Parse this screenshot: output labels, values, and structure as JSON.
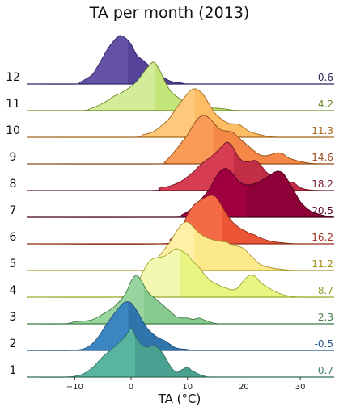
{
  "chart_data": {
    "type": "ridgeline",
    "title": "TA per month (2013)",
    "xlabel": "TA (°C)",
    "ylabel": "",
    "xlim": [
      -18.5,
      36
    ],
    "x_ticks": [
      -10,
      0,
      10,
      20,
      30
    ],
    "x_tick_labels": [
      "−10",
      "0",
      "10",
      "20",
      "30"
    ],
    "mean_label_position": "right",
    "series": [
      {
        "label": "1",
        "mean": 0.7,
        "mean_label": "0.7",
        "color": "#5ab4a2",
        "dark": "#4aa192",
        "line": "#2f6b5f",
        "label_color": "#3c7f70",
        "density": [
          [
            -18,
            0
          ],
          [
            -12,
            0
          ],
          [
            -9,
            0.04
          ],
          [
            -7,
            0.18
          ],
          [
            -5,
            0.42
          ],
          [
            -3,
            0.62
          ],
          [
            -1,
            0.84
          ],
          [
            0,
            1.0
          ],
          [
            1,
            0.8
          ],
          [
            2,
            0.65
          ],
          [
            3,
            0.62
          ],
          [
            4,
            0.65
          ],
          [
            5,
            0.58
          ],
          [
            6,
            0.42
          ],
          [
            7,
            0.22
          ],
          [
            8,
            0.1
          ],
          [
            9,
            0.15
          ],
          [
            10,
            0.2
          ],
          [
            11,
            0.12
          ],
          [
            13,
            0.02
          ],
          [
            16,
            0
          ],
          [
            36,
            0
          ]
        ]
      },
      {
        "label": "2",
        "mean": -0.5,
        "mean_label": "-0.5",
        "color": "#3b86c0",
        "dark": "#2f74ab",
        "line": "#1d4f7d",
        "label_color": "#24558a",
        "density": [
          [
            -18,
            0
          ],
          [
            -11,
            0
          ],
          [
            -8,
            0.05
          ],
          [
            -6,
            0.25
          ],
          [
            -4,
            0.6
          ],
          [
            -2,
            0.9
          ],
          [
            -1,
            1.0
          ],
          [
            0,
            0.98
          ],
          [
            1,
            0.82
          ],
          [
            2,
            0.62
          ],
          [
            3,
            0.44
          ],
          [
            4,
            0.33
          ],
          [
            5,
            0.25
          ],
          [
            6,
            0.2
          ],
          [
            7,
            0.12
          ],
          [
            8,
            0.05
          ],
          [
            10,
            0.02
          ],
          [
            13,
            0
          ],
          [
            36,
            0
          ]
        ]
      },
      {
        "label": "3",
        "mean": 2.3,
        "mean_label": "2.3",
        "color": "#98d59e",
        "dark": "#86ca8f",
        "line": "#3f7a46",
        "label_color": "#3b7b45",
        "density": [
          [
            -18,
            0
          ],
          [
            -12,
            0
          ],
          [
            -10,
            0.04
          ],
          [
            -7,
            0.08
          ],
          [
            -5,
            0.2
          ],
          [
            -3,
            0.35
          ],
          [
            -1,
            0.62
          ],
          [
            0,
            0.88
          ],
          [
            1,
            1.0
          ],
          [
            2,
            0.85
          ],
          [
            3,
            0.65
          ],
          [
            4,
            0.55
          ],
          [
            5,
            0.45
          ],
          [
            6,
            0.35
          ],
          [
            7,
            0.25
          ],
          [
            8,
            0.15
          ],
          [
            9,
            0.12
          ],
          [
            10,
            0.12
          ],
          [
            11,
            0.09
          ],
          [
            12,
            0.12
          ],
          [
            13,
            0.08
          ],
          [
            15,
            0.01
          ],
          [
            18,
            0
          ],
          [
            36,
            0
          ]
        ]
      },
      {
        "label": "4",
        "mean": 8.7,
        "mean_label": "8.7",
        "color": "#f2f8b0",
        "dark": "#e8f582",
        "line": "#9aa62a",
        "label_color": "#8c9a20",
        "density": [
          [
            -18,
            0
          ],
          [
            -3,
            0
          ],
          [
            -1,
            0.05
          ],
          [
            1,
            0.25
          ],
          [
            2,
            0.5
          ],
          [
            3,
            0.7
          ],
          [
            4,
            0.8
          ],
          [
            5,
            0.82
          ],
          [
            6,
            0.85
          ],
          [
            7,
            0.93
          ],
          [
            8,
            1.0
          ],
          [
            9,
            0.95
          ],
          [
            10,
            0.87
          ],
          [
            11,
            0.73
          ],
          [
            12,
            0.62
          ],
          [
            13,
            0.47
          ],
          [
            14,
            0.35
          ],
          [
            15,
            0.28
          ],
          [
            16,
            0.22
          ],
          [
            17,
            0.18
          ],
          [
            18,
            0.15
          ],
          [
            19,
            0.2
          ],
          [
            20,
            0.35
          ],
          [
            21,
            0.45
          ],
          [
            22,
            0.43
          ],
          [
            23,
            0.3
          ],
          [
            25,
            0.15
          ],
          [
            27,
            0.05
          ],
          [
            30,
            0
          ],
          [
            36,
            0
          ]
        ]
      },
      {
        "label": "5",
        "mean": 11.2,
        "mean_label": "11.2",
        "color": "#fff0a5",
        "dark": "#fce98a",
        "line": "#a8972f",
        "label_color": "#a38d16",
        "density": [
          [
            -18,
            0
          ],
          [
            1,
            0
          ],
          [
            3,
            0.05
          ],
          [
            5,
            0.3
          ],
          [
            6,
            0.45
          ],
          [
            7,
            0.6
          ],
          [
            8,
            0.8
          ],
          [
            9,
            0.95
          ],
          [
            10,
            1.0
          ],
          [
            11,
            0.9
          ],
          [
            12,
            0.78
          ],
          [
            13,
            0.7
          ],
          [
            14,
            0.65
          ],
          [
            15,
            0.62
          ],
          [
            16,
            0.6
          ],
          [
            17,
            0.58
          ],
          [
            18,
            0.52
          ],
          [
            19,
            0.5
          ],
          [
            20,
            0.45
          ],
          [
            21,
            0.33
          ],
          [
            22,
            0.22
          ],
          [
            23,
            0.12
          ],
          [
            25,
            0.05
          ],
          [
            28,
            0.01
          ],
          [
            30,
            0
          ],
          [
            36,
            0
          ]
        ]
      },
      {
        "label": "6",
        "mean": 16.2,
        "mean_label": "16.2",
        "color": "#f36a44",
        "dark": "#ec5436",
        "line": "#8c2f17",
        "label_color": "#a0341c",
        "density": [
          [
            -18,
            0
          ],
          [
            5,
            0
          ],
          [
            7,
            0.1
          ],
          [
            9,
            0.35
          ],
          [
            10,
            0.6
          ],
          [
            11,
            0.78
          ],
          [
            12,
            0.88
          ],
          [
            13,
            0.95
          ],
          [
            14,
            1.0
          ],
          [
            15,
            0.97
          ],
          [
            16,
            0.8
          ],
          [
            17,
            0.6
          ],
          [
            18,
            0.45
          ],
          [
            19,
            0.35
          ],
          [
            20,
            0.28
          ],
          [
            21,
            0.22
          ],
          [
            22,
            0.18
          ],
          [
            23,
            0.12
          ],
          [
            25,
            0.05
          ],
          [
            28,
            0.01
          ],
          [
            31,
            0
          ],
          [
            36,
            0
          ]
        ]
      },
      {
        "label": "7",
        "mean": 20.5,
        "mean_label": "20.5",
        "color": "#a0003f",
        "dark": "#8e0038",
        "line": "#4a0020",
        "label_color": "#5d0a2a",
        "density": [
          [
            -18,
            0
          ],
          [
            7,
            0
          ],
          [
            9,
            0.05
          ],
          [
            11,
            0.2
          ],
          [
            13,
            0.45
          ],
          [
            14,
            0.6
          ],
          [
            15,
            0.82
          ],
          [
            16,
            0.97
          ],
          [
            17,
            1.0
          ],
          [
            18,
            0.9
          ],
          [
            19,
            0.75
          ],
          [
            20,
            0.68
          ],
          [
            21,
            0.67
          ],
          [
            22,
            0.7
          ],
          [
            23,
            0.75
          ],
          [
            24,
            0.82
          ],
          [
            25,
            0.9
          ],
          [
            26,
            0.95
          ],
          [
            27,
            0.9
          ],
          [
            28,
            0.72
          ],
          [
            29,
            0.52
          ],
          [
            30,
            0.32
          ],
          [
            31,
            0.2
          ],
          [
            32,
            0.12
          ],
          [
            34,
            0.04
          ],
          [
            36,
            0
          ]
        ]
      },
      {
        "label": "8",
        "mean": 18.2,
        "mean_label": "18.2",
        "color": "#d63c52",
        "dark": "#c22e45",
        "line": "#6a1623",
        "label_color": "#7a1b29",
        "density": [
          [
            -18,
            0
          ],
          [
            3,
            0
          ],
          [
            5,
            0.05
          ],
          [
            7,
            0.1
          ],
          [
            9,
            0.2
          ],
          [
            11,
            0.38
          ],
          [
            12,
            0.5
          ],
          [
            13,
            0.6
          ],
          [
            14,
            0.68
          ],
          [
            15,
            0.78
          ],
          [
            16,
            0.9
          ],
          [
            17,
            1.0
          ],
          [
            18,
            0.9
          ],
          [
            19,
            0.7
          ],
          [
            20,
            0.6
          ],
          [
            21,
            0.6
          ],
          [
            22,
            0.62
          ],
          [
            23,
            0.52
          ],
          [
            24,
            0.38
          ],
          [
            25,
            0.3
          ],
          [
            26,
            0.27
          ],
          [
            27,
            0.2
          ],
          [
            28,
            0.18
          ],
          [
            29,
            0.15
          ],
          [
            30,
            0.06
          ],
          [
            32,
            0.01
          ],
          [
            36,
            0
          ]
        ]
      },
      {
        "label": "9",
        "mean": 14.6,
        "mean_label": "14.6",
        "color": "#fa9a57",
        "dark": "#f58846",
        "line": "#8f4a16",
        "label_color": "#9c4a1a",
        "density": [
          [
            -18,
            0
          ],
          [
            4,
            0
          ],
          [
            6,
            0.05
          ],
          [
            8,
            0.3
          ],
          [
            9,
            0.45
          ],
          [
            10,
            0.6
          ],
          [
            11,
            0.8
          ],
          [
            12,
            0.95
          ],
          [
            13,
            1.0
          ],
          [
            14,
            0.93
          ],
          [
            15,
            0.8
          ],
          [
            16,
            0.7
          ],
          [
            17,
            0.68
          ],
          [
            18,
            0.65
          ],
          [
            19,
            0.55
          ],
          [
            20,
            0.45
          ],
          [
            21,
            0.35
          ],
          [
            22,
            0.25
          ],
          [
            23,
            0.18
          ],
          [
            24,
            0.17
          ],
          [
            25,
            0.2
          ],
          [
            26,
            0.23
          ],
          [
            27,
            0.2
          ],
          [
            28,
            0.12
          ],
          [
            30,
            0.05
          ],
          [
            32,
            0.01
          ],
          [
            36,
            0
          ]
        ]
      },
      {
        "label": "10",
        "mean": 11.3,
        "mean_label": "11.3",
        "color": "#fec97b",
        "dark": "#fcbd65",
        "line": "#a3681d",
        "label_color": "#a5641a",
        "density": [
          [
            -18,
            0
          ],
          [
            0,
            0
          ],
          [
            2,
            0.05
          ],
          [
            4,
            0.12
          ],
          [
            6,
            0.3
          ],
          [
            7,
            0.42
          ],
          [
            8,
            0.6
          ],
          [
            9,
            0.75
          ],
          [
            10,
            0.9
          ],
          [
            11,
            1.0
          ],
          [
            12,
            0.97
          ],
          [
            13,
            0.85
          ],
          [
            14,
            0.65
          ],
          [
            15,
            0.48
          ],
          [
            16,
            0.38
          ],
          [
            17,
            0.3
          ],
          [
            18,
            0.28
          ],
          [
            19,
            0.27
          ],
          [
            20,
            0.2
          ],
          [
            21,
            0.12
          ],
          [
            23,
            0.05
          ],
          [
            26,
            0
          ],
          [
            36,
            0
          ]
        ]
      },
      {
        "label": "11",
        "mean": 4.2,
        "mean_label": "4.2",
        "color": "#d3ec9a",
        "dark": "#c3e57a",
        "line": "#6a8a24",
        "label_color": "#6a8a24",
        "density": [
          [
            -18,
            0
          ],
          [
            -9,
            0
          ],
          [
            -7,
            0.05
          ],
          [
            -5,
            0.15
          ],
          [
            -3,
            0.3
          ],
          [
            -2,
            0.35
          ],
          [
            -1,
            0.42
          ],
          [
            0,
            0.5
          ],
          [
            1,
            0.6
          ],
          [
            2,
            0.75
          ],
          [
            3,
            0.9
          ],
          [
            4,
            1.0
          ],
          [
            5,
            0.85
          ],
          [
            6,
            0.6
          ],
          [
            7,
            0.4
          ],
          [
            8,
            0.3
          ],
          [
            9,
            0.22
          ],
          [
            10,
            0.15
          ],
          [
            11,
            0.1
          ],
          [
            12,
            0.08
          ],
          [
            13,
            0.06
          ],
          [
            15,
            0.05
          ],
          [
            17,
            0.03
          ],
          [
            20,
            0
          ],
          [
            36,
            0
          ]
        ]
      },
      {
        "label": "12",
        "mean": -0.6,
        "mean_label": "-0.6",
        "color": "#6552a6",
        "dark": "#56449a",
        "line": "#2f2566",
        "label_color": "#2d2358",
        "density": [
          [
            -18,
            0
          ],
          [
            -10,
            0
          ],
          [
            -9,
            0.04
          ],
          [
            -7,
            0.18
          ],
          [
            -6,
            0.35
          ],
          [
            -5,
            0.55
          ],
          [
            -4,
            0.75
          ],
          [
            -3,
            0.9
          ],
          [
            -2,
            1.0
          ],
          [
            -1,
            0.95
          ],
          [
            0,
            0.82
          ],
          [
            1,
            0.6
          ],
          [
            2,
            0.5
          ],
          [
            3,
            0.4
          ],
          [
            4,
            0.28
          ],
          [
            5,
            0.2
          ],
          [
            6,
            0.12
          ],
          [
            7,
            0.06
          ],
          [
            9,
            0.02
          ],
          [
            12,
            0
          ],
          [
            36,
            0
          ]
        ]
      }
    ]
  }
}
